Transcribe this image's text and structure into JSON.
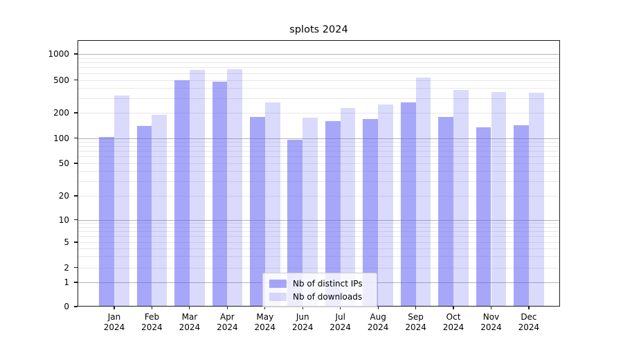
{
  "title": "splots 2024",
  "colors": {
    "bar_ips": "rgba(98,98,244,0.56)",
    "bar_downloads": "rgba(98,98,244,0.235)",
    "grid_major": "#b2b2b2",
    "grid_minor": "#e7e7e7",
    "axis": "#1c1c1c"
  },
  "legend": {
    "items": [
      {
        "label": "Nb of distinct IPs",
        "series": "ips"
      },
      {
        "label": "Nb of downloads",
        "series": "downloads"
      }
    ]
  },
  "x_axis": {
    "months": [
      "Jan",
      "Feb",
      "Mar",
      "Apr",
      "May",
      "Jun",
      "Jul",
      "Aug",
      "Sep",
      "Oct",
      "Nov",
      "Dec"
    ],
    "year": "2024"
  },
  "y_axis": {
    "tick_labels": [
      "0",
      "1",
      "2",
      "5",
      "10",
      "20",
      "50",
      "100",
      "200",
      "500",
      "1000"
    ]
  },
  "chart_data": {
    "type": "bar",
    "title": "splots 2024",
    "categories": [
      "Jan 2024",
      "Feb 2024",
      "Mar 2024",
      "Apr 2024",
      "May 2024",
      "Jun 2024",
      "Jul 2024",
      "Aug 2024",
      "Sep 2024",
      "Oct 2024",
      "Nov 2024",
      "Dec 2024"
    ],
    "series": [
      {
        "name": "Nb of distinct IPs",
        "values": [
          103,
          140,
          500,
          475,
          180,
          95,
          160,
          170,
          265,
          178,
          135,
          142
        ]
      },
      {
        "name": "Nb of downloads",
        "values": [
          325,
          190,
          650,
          665,
          265,
          175,
          230,
          250,
          535,
          375,
          360,
          348
        ]
      }
    ],
    "yscale": "log-like with 0 baseline",
    "y_ticks": [
      0,
      1,
      2,
      5,
      10,
      20,
      50,
      100,
      200,
      500,
      1000
    ],
    "ylim": [
      0,
      1450
    ],
    "grid": true,
    "legend_position": "lower center"
  }
}
